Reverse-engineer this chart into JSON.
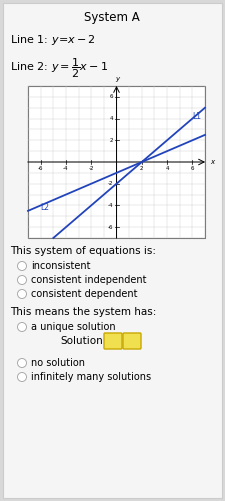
{
  "title": "System A",
  "line1_text": "Line 1: ",
  "line1_eq": "y = x−2",
  "line2_text": "Line 2: ",
  "line1_color": "#2244bb",
  "line2_color": "#2244bb",
  "xlim": [
    -7,
    7
  ],
  "ylim": [
    -7,
    7
  ],
  "xticks": [
    -6,
    -4,
    -2,
    2,
    4,
    6
  ],
  "yticks": [
    -6,
    -4,
    -2,
    2,
    4,
    6
  ],
  "L1_annotation": "L1",
  "L2_annotation": "L2",
  "section1_text": "This system of equations is:",
  "options1": [
    "inconsistent",
    "consistent independent",
    "consistent dependent"
  ],
  "section2_text": "This means the system has:",
  "option2a": "a unique solution",
  "solution_label": "Solution:",
  "option2b": "no solution",
  "option2c": "infinitely many solutions",
  "card_bg": "#f5f5f5",
  "card_edge": "#cccccc",
  "graph_bg": "#ffffff",
  "radio_edge": "#aaaaaa",
  "radio_fill": "#ffffff",
  "sol_box_fill": "#f0e050",
  "sol_box_edge": "#c8a800"
}
